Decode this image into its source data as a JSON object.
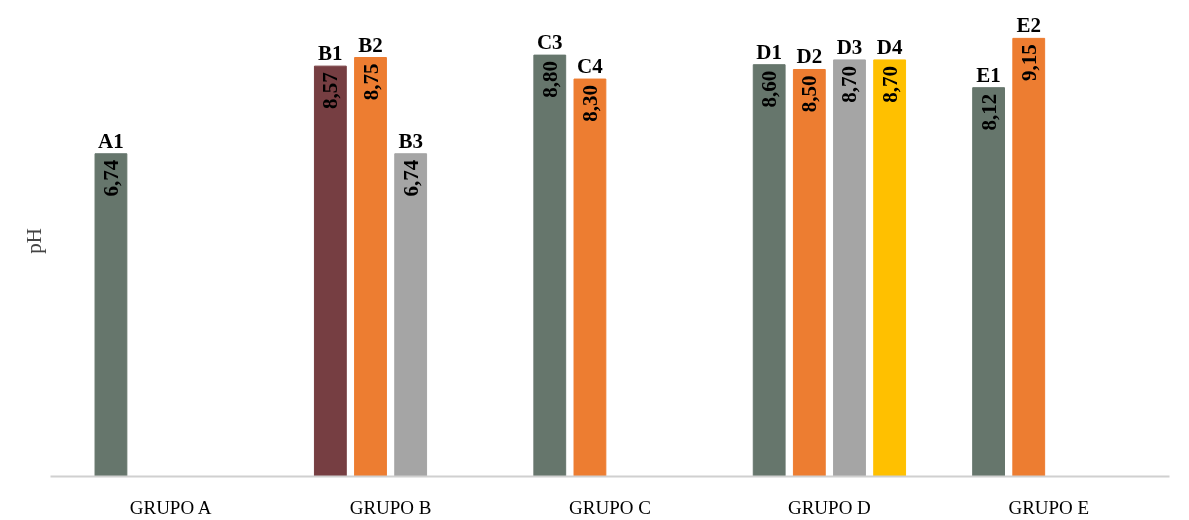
{
  "chart_data": {
    "type": "bar",
    "ylabel": "pH",
    "categories": [
      "GRUPO A",
      "GRUPO B",
      "GRUPO C",
      "GRUPO D",
      "GRUPO E"
    ],
    "series": [
      {
        "colors": [
          "#66766c",
          "#763e42",
          "#66766c",
          "#66766c",
          "#66766c"
        ],
        "values": [
          6.74,
          8.57,
          8.8,
          8.6,
          8.12
        ],
        "value_labels": [
          "6,74",
          "8,57",
          "8,80",
          "8,60",
          "8,12"
        ]
      },
      {
        "color": "#ed7d31",
        "values": [
          null,
          8.75,
          8.3,
          8.5,
          9.15
        ],
        "value_labels": [
          null,
          "8,75",
          "8,30",
          "8,50",
          "9,15"
        ]
      },
      {
        "color": "#a5a5a5",
        "values": [
          null,
          6.74,
          null,
          8.7,
          null
        ],
        "value_labels": [
          null,
          "6,74",
          null,
          "8,70",
          null
        ]
      },
      {
        "color": "#ffc000",
        "values": [
          null,
          null,
          null,
          8.7,
          null
        ],
        "value_labels": [
          null,
          null,
          null,
          "8,70",
          null
        ]
      }
    ],
    "annotations": [
      "A1",
      "B1",
      "B2",
      "B3",
      "C3",
      "C4",
      "D1",
      "D2",
      "D3",
      "D4",
      "E1",
      "E2"
    ],
    "grid": false,
    "tick_labels": "x"
  }
}
